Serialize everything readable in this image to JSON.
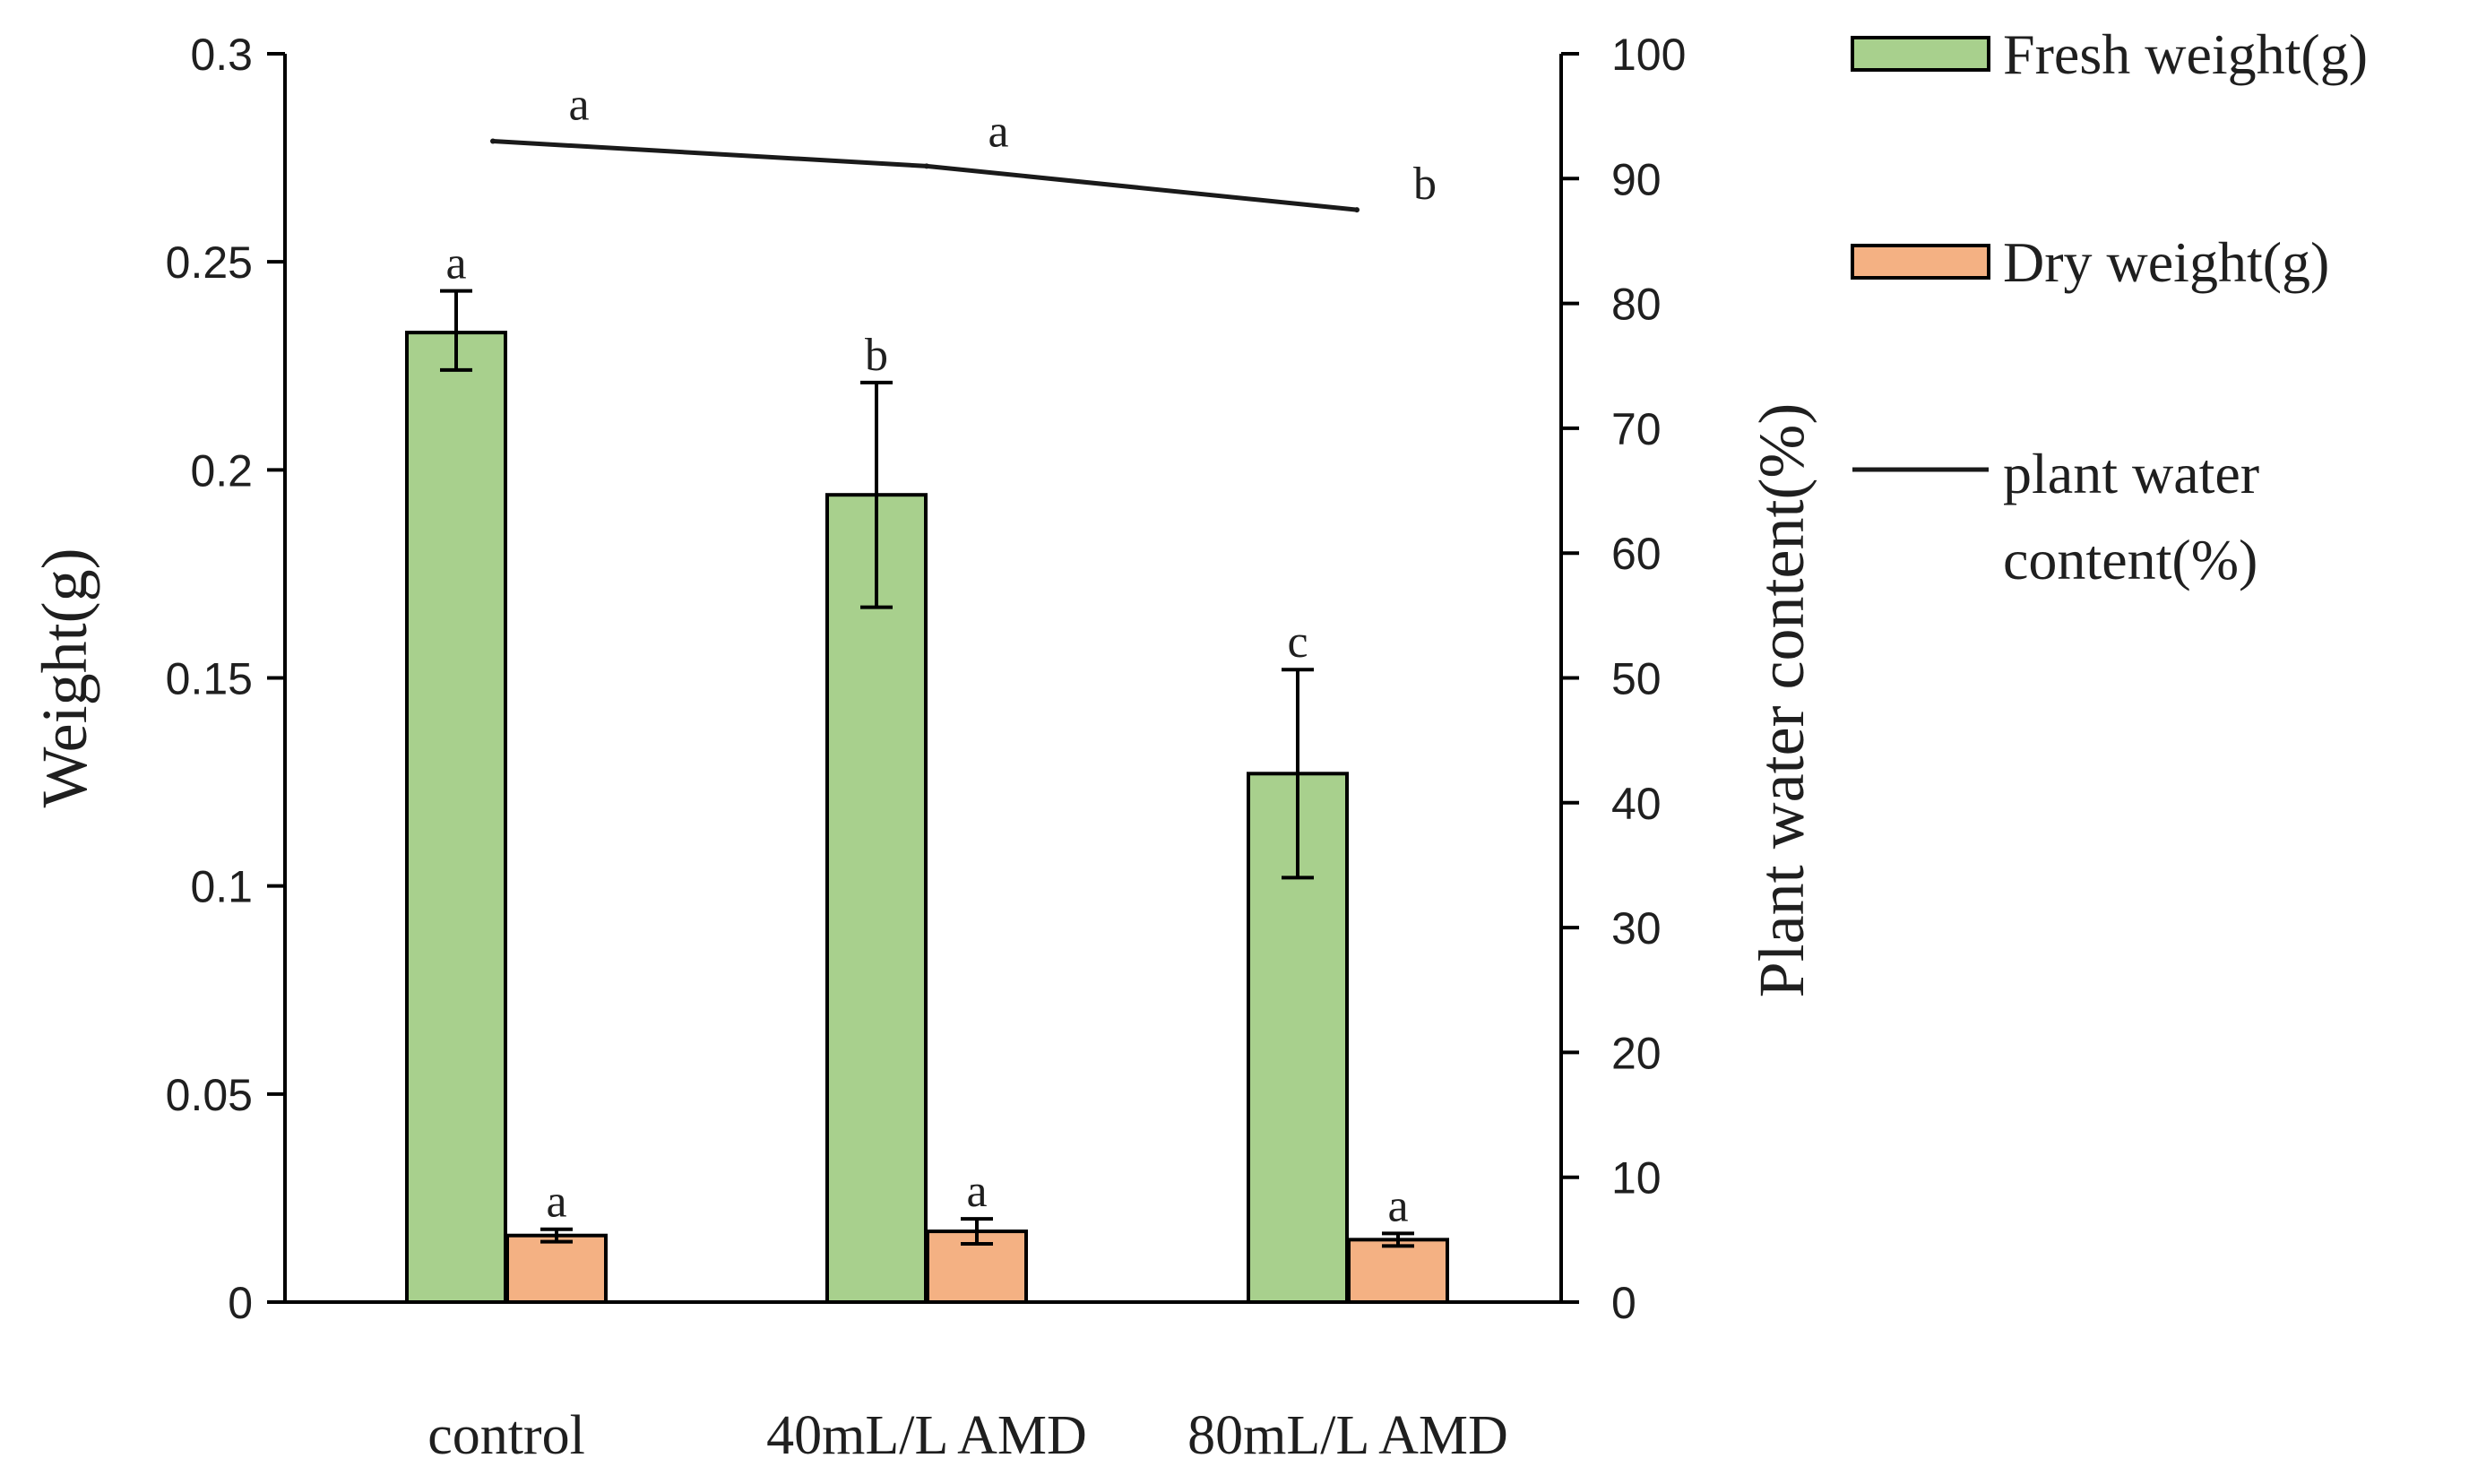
{
  "colors": {
    "fresh": "#a8d08d",
    "dry": "#f4b183",
    "line": "#1a1a1a",
    "axis": "#000000"
  },
  "chart_data": {
    "type": "bar",
    "categories": [
      "control",
      "40mL/L AMD",
      "80mL/L AMD"
    ],
    "series": [
      {
        "name": "Fresh weight(g)",
        "type": "bar",
        "axis": "left",
        "values": [
          0.233,
          0.194,
          0.127
        ],
        "error_low": [
          0.224,
          0.167,
          0.102
        ],
        "error_high": [
          0.243,
          0.221,
          0.152
        ],
        "labels": [
          "a",
          "b",
          "c"
        ]
      },
      {
        "name": "Dry weight(g)",
        "type": "bar",
        "axis": "left",
        "values": [
          0.016,
          0.017,
          0.015
        ],
        "error_low": [
          0.0145,
          0.014,
          0.0135
        ],
        "error_high": [
          0.0175,
          0.02,
          0.0165
        ],
        "labels": [
          "a",
          "a",
          "a"
        ]
      },
      {
        "name": "plant water content(%)",
        "legend_lines": [
          "plant water",
          "content(%)"
        ],
        "type": "line",
        "axis": "right",
        "values": [
          93,
          91,
          87.5
        ],
        "labels": [
          "a",
          "a",
          "b"
        ]
      }
    ],
    "ylabel": "Weight(g)",
    "y2label": "Plant water content(%)",
    "ylim": [
      0,
      0.3
    ],
    "y2lim": [
      0,
      100
    ],
    "yticks": [
      "0",
      "0.05",
      "0.1",
      "0.15",
      "0.2",
      "0.25",
      "0.3"
    ],
    "y2ticks": [
      "0",
      "10",
      "20",
      "30",
      "40",
      "50",
      "60",
      "70",
      "80",
      "90",
      "100"
    ],
    "legend_position": "right",
    "grid": false
  }
}
